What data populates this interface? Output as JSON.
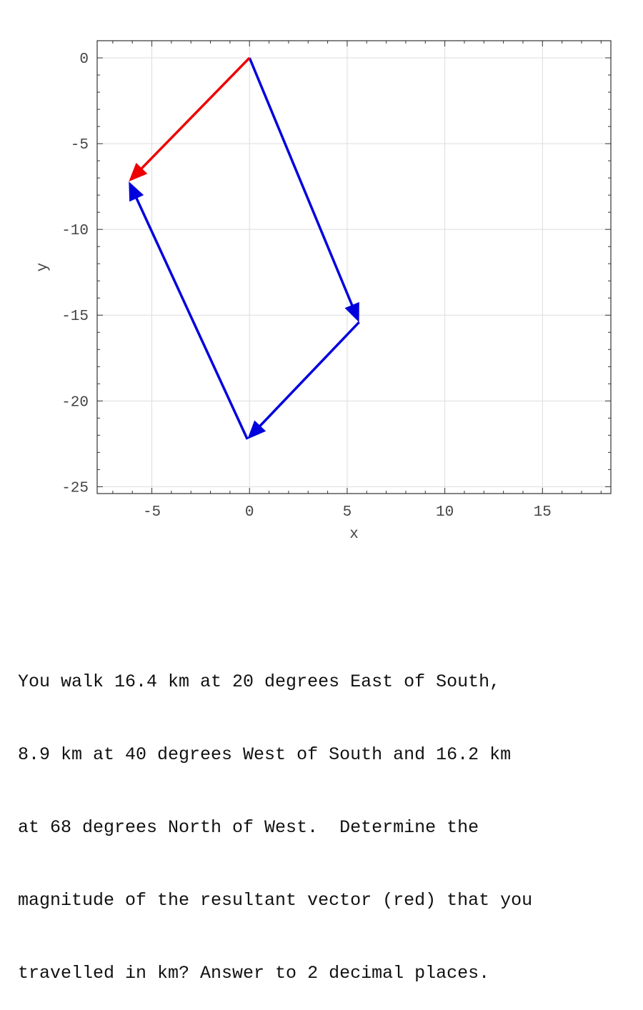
{
  "chart_data": {
    "type": "vector-plot",
    "xlabel": "x",
    "ylabel": "y",
    "xlim": [
      -7.8,
      18.5
    ],
    "ylim": [
      -25.4,
      1.0
    ],
    "xticks": [
      -5,
      0,
      5,
      10,
      15
    ],
    "yticks": [
      0,
      -5,
      -10,
      -15,
      -20,
      -25
    ],
    "grid": true,
    "vectors": [
      {
        "role": "leg",
        "color": "#0000dd",
        "from": [
          0,
          0
        ],
        "to": [
          5.61,
          -15.41
        ]
      },
      {
        "role": "leg",
        "color": "#0000dd",
        "from": [
          5.61,
          -15.41
        ],
        "to": [
          -0.11,
          -22.23
        ]
      },
      {
        "role": "leg",
        "color": "#0000dd",
        "from": [
          -0.11,
          -22.23
        ],
        "to": [
          -6.18,
          -7.21
        ]
      },
      {
        "role": "resultant",
        "color": "#ee0000",
        "from": [
          0,
          0
        ],
        "to": [
          -6.18,
          -7.21
        ]
      }
    ]
  },
  "question": {
    "lines": [
      "You walk 16.4 km at 20 degrees East of South,",
      "8.9 km at 40 degrees West of South and 16.2 km",
      "at 68 degrees North of West.  Determine the",
      "magnitude of the resultant vector (red) that you",
      "travelled in km? Answer to 2 decimal places."
    ]
  }
}
